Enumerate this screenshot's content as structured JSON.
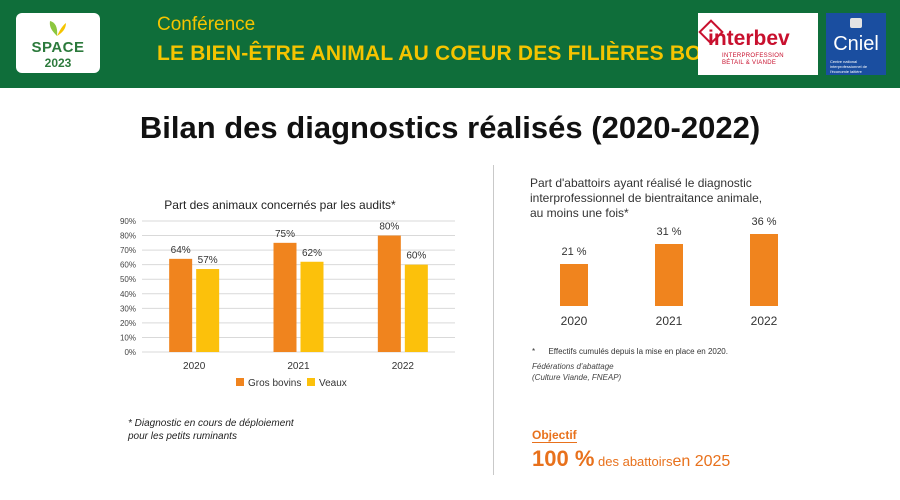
{
  "banner": {
    "logo_left": {
      "line1": "SPACE",
      "line2": "2023"
    },
    "subtitle": "Conférence",
    "title": "LE BIEN-ÊTRE ANIMAL AU COEUR DES FILIÈRES BOVINES",
    "logo_interbev": {
      "word": "interbev",
      "tagline": "INTERPROFESSION\nBÉTAIL & VIANDE"
    },
    "logo_cniel": {
      "word": "Cniel",
      "tagline": "Centre national interprofessionnel de l'économie laitière"
    },
    "background_color": "#0f6e3a",
    "text_color": "#f5c400"
  },
  "main_title": "Bilan des diagnostics réalisés (2020-2022)",
  "chart_data": [
    {
      "type": "bar",
      "title": "Part des animaux concernés par les audits*",
      "categories": [
        "2020",
        "2021",
        "2022"
      ],
      "series": [
        {
          "name": "Gros bovins",
          "values": [
            64,
            75,
            80
          ],
          "labels": [
            "64%",
            "75%",
            "80%"
          ],
          "color": "#f0841e"
        },
        {
          "name": "Veaux",
          "values": [
            57,
            62,
            60
          ],
          "labels": [
            "57%",
            "62%",
            "60%"
          ],
          "color": "#fcc10b"
        }
      ],
      "ylim": [
        0,
        90
      ],
      "yticks": [
        "0%",
        "10%",
        "20%",
        "30%",
        "40%",
        "50%",
        "60%",
        "70%",
        "80%",
        "90%"
      ],
      "grid": true,
      "legend": "bottom",
      "xlabel": "",
      "ylabel": ""
    },
    {
      "type": "bar",
      "title": "Part d'abattoirs ayant réalisé le diagnostic interprofessionnel de bientraitance animale, au moins une fois*",
      "title_lines": [
        "Part d'abattoirs ayant réalisé le diagnostic",
        "interprofessionnel de bientraitance animale,",
        "au moins une fois*"
      ],
      "categories": [
        "2020",
        "2021",
        "2022"
      ],
      "values": [
        21,
        31,
        36
      ],
      "labels": [
        "21 %",
        "31 %",
        "36 %"
      ],
      "color": "#f0841e",
      "grid": false,
      "xlabel": "",
      "ylabel": ""
    }
  ],
  "footnote_left": {
    "line1": "* Diagnostic en cours de déploiement",
    "line2": "pour les petits ruminants"
  },
  "footnote_right": "*      Effectifs cumulés depuis la mise en place en 2020.",
  "source": {
    "line1": "Fédérations d'abattage",
    "line2": "(Culture Viande, FNEAP)"
  },
  "objectif": {
    "label": "Objectif",
    "value": "100 %",
    "text": "des abattoirs",
    "year_text": "en 2025"
  }
}
